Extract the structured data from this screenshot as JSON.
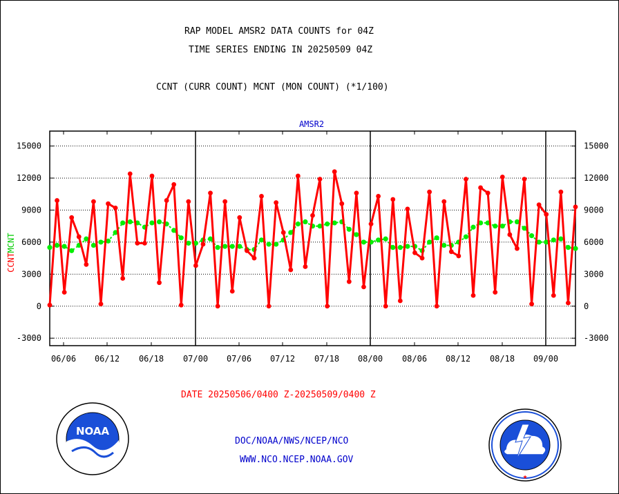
{
  "header": {
    "title_line1": "RAP MODEL AMSR2 DATA COUNTS for 04Z",
    "title_line2": "TIME SERIES ENDING IN 20250509 04Z",
    "subtitle": "CCNT (CURR COUNT) MCNT (MON COUNT) (*1/100)"
  },
  "footer": {
    "date_range": "DATE 20250506/0400 Z-20250509/0400 Z",
    "credit_line1": "DOC/NOAA/NWS/NCEP/NCO",
    "credit_line2": "WWW.NCO.NCEP.NOAA.GOV"
  },
  "logos": {
    "noaa": {
      "label": "NOAA",
      "ring_text": "NATIONAL OCEANIC AND ATMOSPHERIC ADMINISTRATION · U.S. DEPARTMENT OF COMMERCE"
    },
    "nws": {
      "ring_text": "NATIONAL WEATHER SERVICE"
    }
  },
  "chart_data": {
    "type": "line",
    "title": "AMSR2",
    "ylabel_left": [
      "CCNT",
      "MCNT"
    ],
    "ylim": [
      -3700,
      16400
    ],
    "yticks": [
      -3000,
      0,
      3000,
      6000,
      9000,
      12000,
      15000
    ],
    "ytick_labels": [
      "-3000",
      "0",
      "3000",
      "6000",
      "9000",
      "12000",
      "15000"
    ],
    "x_tick_labels": [
      "06/06",
      "06/12",
      "06/18",
      "07/00",
      "07/06",
      "07/12",
      "07/18",
      "08/00",
      "08/06",
      "08/12",
      "08/18",
      "09/00"
    ],
    "day_boundary_labels": [
      "07/00",
      "08/00",
      "09/00"
    ],
    "grid": true,
    "series": [
      {
        "name": "CCNT",
        "color": "#ff0000",
        "values": [
          100,
          9900,
          1300,
          8300,
          6500,
          3900,
          9800,
          200,
          9600,
          9200,
          2600,
          12400,
          5900,
          5900,
          12200,
          2200,
          9900,
          11400,
          100,
          9800,
          3800,
          5800,
          10600,
          0,
          9800,
          1400,
          8300,
          5200,
          4500,
          10300,
          0,
          9700,
          6900,
          3400,
          12200,
          3700,
          8500,
          11900,
          0,
          12600,
          9600,
          2300,
          10600,
          1800,
          7700,
          10300,
          0,
          10000,
          500,
          9100,
          5000,
          4500,
          10700,
          0,
          9800,
          5100,
          4700,
          11900,
          1000,
          11100,
          10600,
          1300,
          12100,
          6700,
          5400,
          11900,
          200,
          9500,
          8600,
          1000,
          10700,
          300,
          9300
        ]
      },
      {
        "name": "MCNT",
        "color": "#00ee00",
        "values": [
          5500,
          5700,
          5600,
          5200,
          5700,
          6300,
          5700,
          6000,
          6100,
          6900,
          7800,
          7900,
          7800,
          7400,
          7800,
          7900,
          7700,
          7100,
          6400,
          5900,
          5900,
          6200,
          6300,
          5500,
          5600,
          5600,
          5600,
          5300,
          5300,
          6200,
          5800,
          5800,
          6200,
          6900,
          7700,
          7900,
          7500,
          7500,
          7700,
          7800,
          7900,
          7200,
          6700,
          6000,
          6000,
          6200,
          6300,
          5500,
          5500,
          5600,
          5600,
          5200,
          6000,
          6400,
          5700,
          5700,
          6000,
          6500,
          7400,
          7800,
          7800,
          7500,
          7500,
          7900,
          7900,
          7300,
          6600,
          6000,
          6000,
          6200,
          6300,
          5500,
          5400
        ]
      }
    ]
  }
}
